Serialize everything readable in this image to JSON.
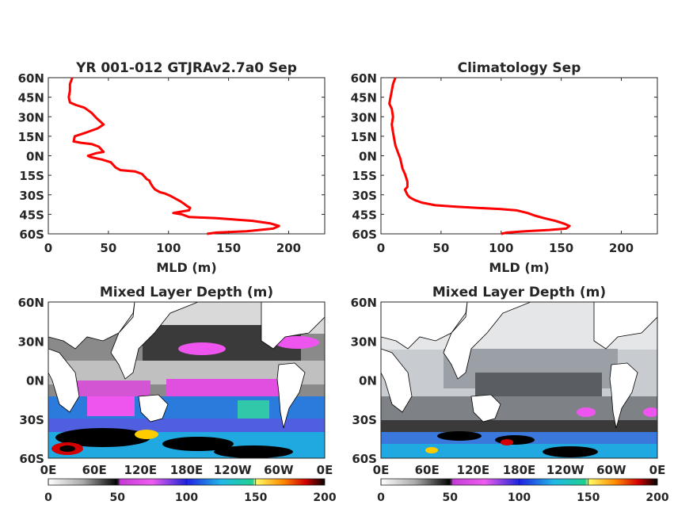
{
  "chart_data": [
    {
      "type": "line",
      "title": "YR 001-012 GTJRAv2.7a0 Sep",
      "xlabel": "MLD (m)",
      "ylabel": "",
      "xlim": [
        0,
        230
      ],
      "ylim": [
        -60,
        60
      ],
      "x_ticks": [
        "0",
        "50",
        "100",
        "150",
        "200"
      ],
      "y_ticks": [
        "60N",
        "45N",
        "30N",
        "15N",
        "0N",
        "15S",
        "30S",
        "45S",
        "60S"
      ],
      "series": [
        {
          "color": "#ff0000",
          "points": [
            [
              20,
              60
            ],
            [
              18,
              55
            ],
            [
              18,
              50
            ],
            [
              17,
              45
            ],
            [
              18,
              41
            ],
            [
              23,
              39
            ],
            [
              30,
              37
            ],
            [
              36,
              33
            ],
            [
              40,
              29
            ],
            [
              46,
              24
            ],
            [
              41,
              21
            ],
            [
              32,
              18
            ],
            [
              22,
              15
            ],
            [
              21,
              11
            ],
            [
              27,
              10
            ],
            [
              36,
              9
            ],
            [
              42,
              7
            ],
            [
              46,
              3
            ],
            [
              40,
              2
            ],
            [
              33,
              0
            ],
            [
              35,
              -1
            ],
            [
              45,
              -3
            ],
            [
              52,
              -5
            ],
            [
              56,
              -9
            ],
            [
              60,
              -11
            ],
            [
              72,
              -12
            ],
            [
              78,
              -14
            ],
            [
              80,
              -16
            ],
            [
              82,
              -18
            ],
            [
              84,
              -19
            ],
            [
              85,
              -21
            ],
            [
              87,
              -24
            ],
            [
              89,
              -26
            ],
            [
              93,
              -28
            ],
            [
              97,
              -29
            ],
            [
              102,
              -31
            ],
            [
              106,
              -33
            ],
            [
              110,
              -35
            ],
            [
              113,
              -37
            ],
            [
              116,
              -39
            ],
            [
              118,
              -40
            ],
            [
              117,
              -42
            ],
            [
              110,
              -43
            ],
            [
              104,
              -44
            ],
            [
              111,
              -45
            ],
            [
              117,
              -47
            ],
            [
              140,
              -48
            ],
            [
              170,
              -50
            ],
            [
              185,
              -52
            ],
            [
              192,
              -54
            ],
            [
              187,
              -56
            ],
            [
              165,
              -58
            ],
            [
              140,
              -59
            ],
            [
              132,
              -60
            ]
          ]
        }
      ]
    },
    {
      "type": "line",
      "title": "Climatology Sep",
      "xlabel": "MLD (m)",
      "ylabel": "",
      "xlim": [
        0,
        230
      ],
      "ylim": [
        -60,
        60
      ],
      "x_ticks": [
        "0",
        "50",
        "100",
        "150",
        "200"
      ],
      "y_ticks": [
        "60N",
        "45N",
        "30N",
        "15N",
        "0N",
        "15S",
        "30S",
        "45S",
        "60S"
      ],
      "series": [
        {
          "color": "#ff0000",
          "points": [
            [
              12,
              60
            ],
            [
              10,
              55
            ],
            [
              9,
              50
            ],
            [
              8,
              45
            ],
            [
              7,
              40
            ],
            [
              9,
              36
            ],
            [
              10,
              30
            ],
            [
              9,
              24
            ],
            [
              10,
              18
            ],
            [
              11,
              13
            ],
            [
              12,
              8
            ],
            [
              14,
              3
            ],
            [
              16,
              -2
            ],
            [
              17,
              -6
            ],
            [
              18,
              -10
            ],
            [
              20,
              -14
            ],
            [
              21,
              -17
            ],
            [
              22,
              -20
            ],
            [
              22,
              -24
            ],
            [
              20,
              -26
            ],
            [
              21,
              -28
            ],
            [
              22,
              -30
            ],
            [
              24,
              -32
            ],
            [
              28,
              -34
            ],
            [
              34,
              -36
            ],
            [
              45,
              -38
            ],
            [
              60,
              -39
            ],
            [
              80,
              -40
            ],
            [
              100,
              -41
            ],
            [
              113,
              -42
            ],
            [
              122,
              -44
            ],
            [
              128,
              -46
            ],
            [
              136,
              -48
            ],
            [
              145,
              -50
            ],
            [
              152,
              -52
            ],
            [
              157,
              -54
            ],
            [
              154,
              -56
            ],
            [
              140,
              -57
            ],
            [
              120,
              -58
            ],
            [
              105,
              -59
            ],
            [
              100,
              -60
            ]
          ]
        }
      ]
    },
    {
      "type": "heatmap",
      "title": "Mixed Layer Depth (m)",
      "xlabel": "",
      "ylabel": "",
      "x_ticks": [
        "0E",
        "60E",
        "120E",
        "180E",
        "120W",
        "60W",
        "0E"
      ],
      "y_ticks": [
        "60N",
        "30N",
        "0N",
        "30S",
        "60S"
      ],
      "colorbar": {
        "ticks": [
          "0",
          "50",
          "100",
          "150",
          "200"
        ],
        "range": [
          0,
          200
        ]
      }
    },
    {
      "type": "heatmap",
      "title": "Mixed Layer Depth (m)",
      "xlabel": "",
      "ylabel": "",
      "x_ticks": [
        "0E",
        "60E",
        "120E",
        "180E",
        "120W",
        "60W",
        "0E"
      ],
      "y_ticks": [
        "60N",
        "30N",
        "0N",
        "30S",
        "60S"
      ],
      "colorbar": {
        "ticks": [
          "0",
          "50",
          "100",
          "150",
          "200"
        ],
        "range": [
          0,
          200
        ]
      }
    }
  ]
}
